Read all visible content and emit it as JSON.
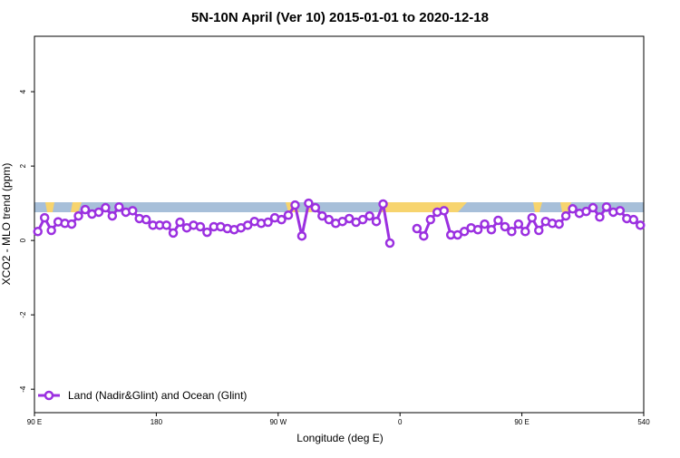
{
  "chart_data": {
    "type": "line",
    "title": "5N-10N April (Ver 10)   2015-01-01 to 2020-12-18",
    "xlabel": "Longitude (deg E)",
    "ylabel": "XCO2 - MLO trend (ppm)",
    "xlim": [
      90,
      540
    ],
    "xticks": [
      {
        "value": 90,
        "label": "90 E"
      },
      180,
      {
        "value": 270,
        "label": "90 W"
      },
      {
        "value": 360,
        "label": "0"
      },
      {
        "value": 450,
        "label": "90 E"
      },
      540
    ],
    "ylim": [
      -4.63,
      5.49
    ],
    "yticks": [
      -4,
      -2,
      0,
      2,
      4
    ],
    "legend": "bottom-left",
    "x": [
      92.5,
      97.5,
      102.5,
      107.5,
      112.5,
      117.5,
      122.5,
      127.5,
      132.5,
      137.5,
      142.5,
      147.5,
      152.5,
      157.5,
      162.5,
      167.5,
      172.5,
      177.5,
      182.5,
      187.5,
      192.5,
      197.5,
      202.5,
      207.5,
      212.5,
      217.5,
      222.5,
      227.5,
      232.5,
      237.5,
      242.5,
      247.5,
      252.5,
      257.5,
      262.5,
      267.5,
      272.5,
      277.5,
      282.5,
      287.5,
      292.5,
      297.5,
      302.5,
      307.5,
      312.5,
      317.5,
      322.5,
      327.5,
      332.5,
      337.5,
      342.5,
      347.5,
      352.5,
      357.5,
      362.5,
      367.5,
      372.5,
      377.5,
      382.5,
      387.5,
      392.5,
      397.5,
      402.5,
      407.5,
      412.5,
      417.5,
      422.5,
      427.5,
      432.5,
      437.5,
      442.5,
      447.5,
      452.5,
      457.5,
      462.5,
      467.5,
      472.5,
      477.5,
      482.5,
      487.5,
      492.5,
      497.5,
      502.5,
      507.5,
      512.5,
      517.5,
      522.5,
      527.5,
      532.5,
      537.5
    ],
    "series": [
      {
        "name": "Land (Nadir&Glint) and Ocean (Glint)",
        "color": "#9b30e0",
        "values": [
          0.24,
          0.61,
          0.27,
          0.5,
          0.46,
          0.44,
          0.66,
          0.83,
          0.71,
          0.76,
          0.88,
          0.66,
          0.9,
          0.76,
          0.8,
          0.59,
          0.56,
          0.41,
          0.41,
          0.41,
          0.2,
          0.49,
          0.34,
          0.41,
          0.37,
          0.22,
          0.37,
          0.37,
          0.32,
          0.29,
          0.34,
          0.41,
          0.51,
          0.46,
          0.49,
          0.61,
          0.56,
          0.68,
          0.95,
          0.12,
          1.0,
          0.88,
          0.66,
          0.56,
          0.46,
          0.51,
          0.59,
          0.49,
          0.56,
          0.66,
          0.51,
          0.98,
          -0.07,
          null,
          null,
          null,
          0.32,
          0.12,
          0.56,
          0.76,
          0.8,
          0.15,
          0.15,
          0.24,
          0.34,
          0.29,
          0.44,
          0.29,
          0.54,
          0.37,
          0.24,
          0.44,
          0.24,
          0.61,
          0.27,
          0.51,
          0.46,
          0.44,
          0.66,
          0.85,
          0.73,
          0.78,
          0.88,
          0.63,
          0.9,
          0.76,
          0.8,
          0.59,
          0.56,
          0.41
        ]
      }
    ]
  }
}
